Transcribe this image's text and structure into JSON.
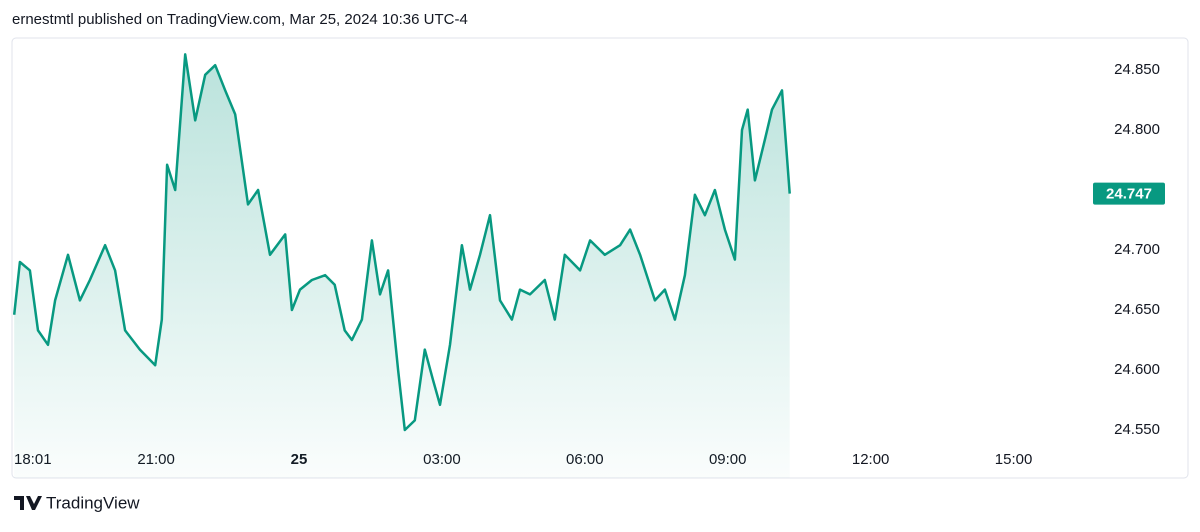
{
  "header": {
    "text": "ernestmtl published on TradingView.com, Mar 25, 2024 10:36 UTC-4"
  },
  "footer": {
    "brand": "TradingView"
  },
  "chart_data": {
    "type": "area",
    "xlim": [
      18.0167,
      40.5
    ],
    "xticks": [
      {
        "value": 18.0167,
        "label": "18:01"
      },
      {
        "value": 21,
        "label": "21:00"
      },
      {
        "value": 24,
        "label": "25"
      },
      {
        "value": 27,
        "label": "03:00"
      },
      {
        "value": 30,
        "label": "06:00"
      },
      {
        "value": 33,
        "label": "09:00"
      },
      {
        "value": 36,
        "label": "12:00"
      },
      {
        "value": 39,
        "label": "15:00"
      }
    ],
    "ylim": [
      24.51,
      24.8767
    ],
    "yticks": [
      {
        "value": 24.55,
        "label": "24.550"
      },
      {
        "value": 24.6,
        "label": "24.600"
      },
      {
        "value": 24.65,
        "label": "24.650"
      },
      {
        "value": 24.7,
        "label": "24.700"
      },
      {
        "value": 24.8,
        "label": "24.800"
      },
      {
        "value": 24.85,
        "label": "24.850"
      }
    ],
    "grid": false,
    "x": [
      18.02,
      18.14,
      18.35,
      18.52,
      18.73,
      18.88,
      19.15,
      19.4,
      19.61,
      19.93,
      20.14,
      20.35,
      20.66,
      20.98,
      21.12,
      21.23,
      21.4,
      21.61,
      21.82,
      22.03,
      22.24,
      22.45,
      22.66,
      22.93,
      23.14,
      23.39,
      23.71,
      23.85,
      24.02,
      24.27,
      24.55,
      24.75,
      24.96,
      25.11,
      25.32,
      25.53,
      25.7,
      25.87,
      26.08,
      26.22,
      26.43,
      26.64,
      26.81,
      26.96,
      27.17,
      27.42,
      27.59,
      27.8,
      28.01,
      28.22,
      28.47,
      28.64,
      28.85,
      29.16,
      29.37,
      29.58,
      29.9,
      30.11,
      30.42,
      30.74,
      30.95,
      31.16,
      31.47,
      31.68,
      31.89,
      32.1,
      32.31,
      32.52,
      32.73,
      32.94,
      33.15,
      33.3,
      33.42,
      33.57,
      33.78,
      33.93,
      34.14,
      34.3
    ],
    "series": [
      {
        "color": "#089981",
        "values": [
          24.646,
          24.69,
          24.683,
          24.633,
          24.621,
          24.658,
          24.696,
          24.658,
          24.675,
          24.704,
          24.683,
          24.633,
          24.617,
          24.604,
          24.642,
          24.771,
          24.75,
          24.863,
          24.808,
          24.846,
          24.854,
          24.833,
          24.813,
          24.738,
          24.75,
          24.696,
          24.713,
          24.65,
          24.667,
          24.675,
          24.679,
          24.671,
          24.633,
          24.625,
          24.642,
          24.708,
          24.663,
          24.683,
          24.6,
          24.55,
          24.558,
          24.617,
          24.592,
          24.571,
          24.621,
          24.704,
          24.667,
          24.696,
          24.729,
          24.658,
          24.642,
          24.667,
          24.663,
          24.675,
          24.642,
          24.696,
          24.683,
          24.708,
          24.696,
          24.704,
          24.717,
          24.696,
          24.658,
          24.667,
          24.642,
          24.679,
          24.746,
          24.729,
          24.75,
          24.717,
          24.692,
          24.8,
          24.817,
          24.758,
          24.792,
          24.817,
          24.833,
          24.747
        ]
      }
    ]
  }
}
